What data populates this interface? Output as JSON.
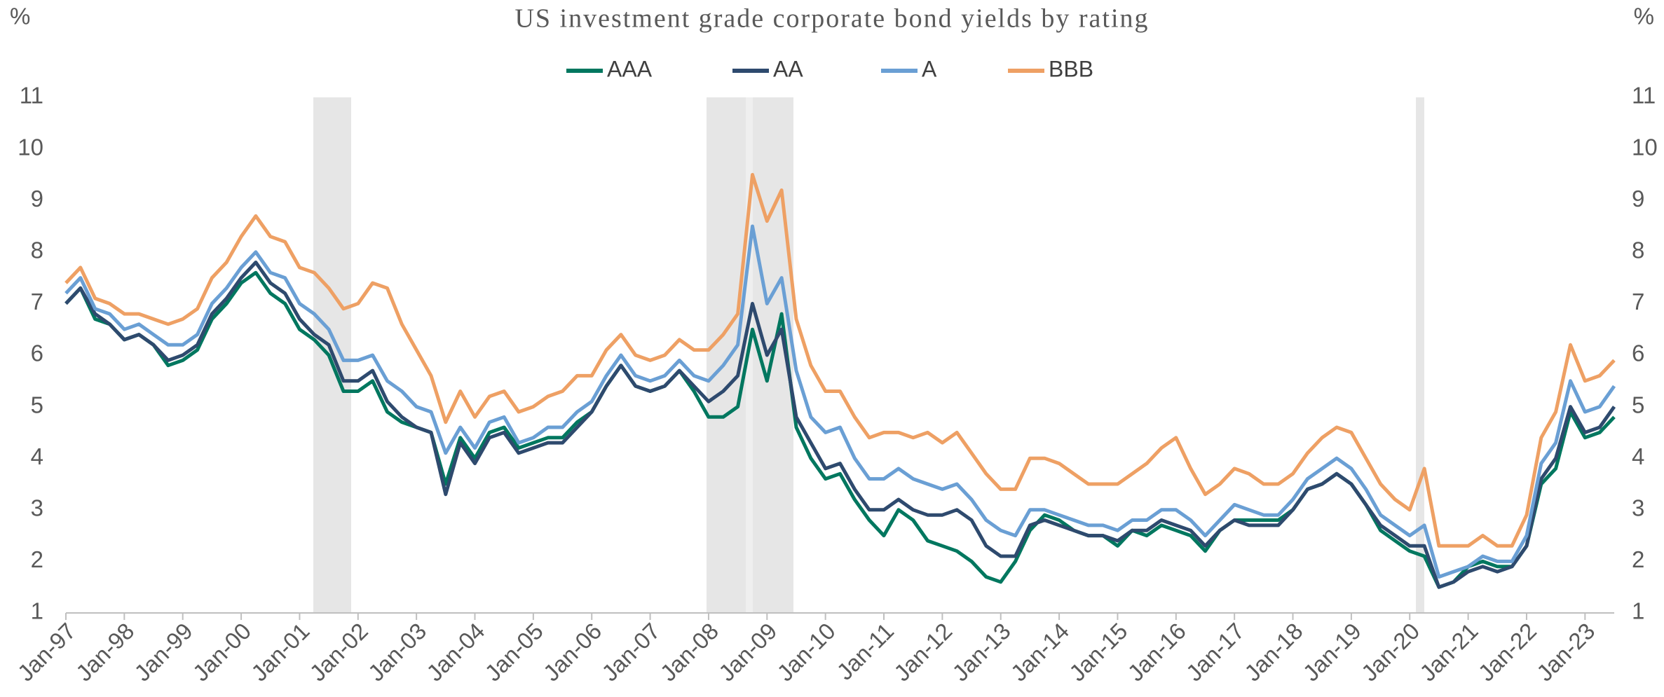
{
  "chart_data": {
    "type": "line",
    "title": "US investment grade corporate bond yields by rating",
    "y_label": "%",
    "y2_label": "%",
    "legend": "top",
    "categories": [
      "Jan-97",
      null,
      null,
      null,
      "Jan-98",
      null,
      null,
      null,
      "Jan-99",
      null,
      null,
      null,
      "Jan-00",
      null,
      null,
      null,
      "Jan-01",
      null,
      null,
      null,
      "Jan-02",
      null,
      null,
      null,
      "Jan-03",
      null,
      null,
      null,
      "Jan-04",
      null,
      null,
      null,
      "Jan-05",
      null,
      null,
      null,
      "Jan-06",
      null,
      null,
      null,
      "Jan-07",
      null,
      null,
      null,
      "Jan-08",
      null,
      null,
      null,
      "Jan-09",
      null,
      null,
      null,
      "Jan-10",
      null,
      null,
      null,
      "Jan-11",
      null,
      null,
      null,
      "Jan-12",
      null,
      null,
      null,
      "Jan-13",
      null,
      null,
      null,
      "Jan-14",
      null,
      null,
      null,
      "Jan-15",
      null,
      null,
      null,
      "Jan-16",
      null,
      null,
      null,
      "Jan-17",
      null,
      null,
      null,
      "Jan-18",
      null,
      null,
      null,
      "Jan-19",
      null,
      null,
      null,
      "Jan-20",
      null,
      null,
      null,
      "Jan-21",
      null,
      null,
      null,
      "Jan-22",
      null,
      null,
      null,
      "Jan-23",
      null,
      null
    ],
    "series": [
      {
        "name": "AAA",
        "color": "#00775f",
        "values": [
          7.0,
          7.3,
          6.7,
          6.6,
          6.3,
          6.4,
          6.2,
          5.8,
          5.9,
          6.1,
          6.7,
          7.0,
          7.4,
          7.6,
          7.2,
          7.0,
          6.5,
          6.3,
          6.0,
          5.3,
          5.3,
          5.5,
          4.9,
          4.7,
          4.6,
          4.5,
          3.5,
          4.4,
          4.0,
          4.5,
          4.6,
          4.2,
          4.3,
          4.4,
          4.4,
          4.7,
          4.9,
          5.4,
          5.8,
          5.4,
          5.3,
          5.4,
          5.7,
          5.3,
          4.8,
          4.8,
          5.0,
          6.5,
          5.5,
          6.8,
          4.6,
          4.0,
          3.6,
          3.7,
          3.2,
          2.8,
          2.5,
          3.0,
          2.8,
          2.4,
          2.3,
          2.2,
          2.0,
          1.7,
          1.6,
          2.0,
          2.6,
          2.9,
          2.8,
          2.6,
          2.5,
          2.5,
          2.3,
          2.6,
          2.5,
          2.7,
          2.6,
          2.5,
          2.2,
          2.6,
          2.8,
          2.8,
          2.8,
          2.8,
          3.0,
          3.4,
          3.5,
          3.7,
          3.5,
          3.1,
          2.6,
          2.4,
          2.2,
          2.1,
          1.5,
          1.6,
          1.9,
          2.0,
          1.9,
          1.9,
          2.3,
          3.5,
          3.8,
          4.9,
          4.4,
          4.5,
          4.8
        ]
      },
      {
        "name": "AA",
        "color": "#2e4a6e",
        "values": [
          7.0,
          7.3,
          6.8,
          6.6,
          6.3,
          6.4,
          6.2,
          5.9,
          6.0,
          6.2,
          6.8,
          7.1,
          7.5,
          7.8,
          7.4,
          7.2,
          6.7,
          6.4,
          6.2,
          5.5,
          5.5,
          5.7,
          5.1,
          4.8,
          4.6,
          4.5,
          3.3,
          4.3,
          3.9,
          4.4,
          4.5,
          4.1,
          4.2,
          4.3,
          4.3,
          4.6,
          4.9,
          5.4,
          5.8,
          5.4,
          5.3,
          5.4,
          5.7,
          5.4,
          5.1,
          5.3,
          5.6,
          7.0,
          6.0,
          6.5,
          4.8,
          4.3,
          3.8,
          3.9,
          3.4,
          3.0,
          3.0,
          3.2,
          3.0,
          2.9,
          2.9,
          3.0,
          2.8,
          2.3,
          2.1,
          2.1,
          2.7,
          2.8,
          2.7,
          2.6,
          2.5,
          2.5,
          2.4,
          2.6,
          2.6,
          2.8,
          2.7,
          2.6,
          2.3,
          2.6,
          2.8,
          2.7,
          2.7,
          2.7,
          3.0,
          3.4,
          3.5,
          3.7,
          3.5,
          3.1,
          2.7,
          2.5,
          2.3,
          2.3,
          1.5,
          1.6,
          1.8,
          1.9,
          1.8,
          1.9,
          2.3,
          3.6,
          4.0,
          5.0,
          4.5,
          4.6,
          5.0
        ]
      },
      {
        "name": "A",
        "color": "#6a9fd4",
        "values": [
          7.2,
          7.5,
          6.9,
          6.8,
          6.5,
          6.6,
          6.4,
          6.2,
          6.2,
          6.4,
          7.0,
          7.3,
          7.7,
          8.0,
          7.6,
          7.5,
          7.0,
          6.8,
          6.5,
          5.9,
          5.9,
          6.0,
          5.5,
          5.3,
          5.0,
          4.9,
          4.1,
          4.6,
          4.2,
          4.7,
          4.8,
          4.3,
          4.4,
          4.6,
          4.6,
          4.9,
          5.1,
          5.6,
          6.0,
          5.6,
          5.5,
          5.6,
          5.9,
          5.6,
          5.5,
          5.8,
          6.2,
          8.5,
          7.0,
          7.5,
          5.7,
          4.8,
          4.5,
          4.6,
          4.0,
          3.6,
          3.6,
          3.8,
          3.6,
          3.5,
          3.4,
          3.5,
          3.2,
          2.8,
          2.6,
          2.5,
          3.0,
          3.0,
          2.9,
          2.8,
          2.7,
          2.7,
          2.6,
          2.8,
          2.8,
          3.0,
          3.0,
          2.8,
          2.5,
          2.8,
          3.1,
          3.0,
          2.9,
          2.9,
          3.2,
          3.6,
          3.8,
          4.0,
          3.8,
          3.4,
          2.9,
          2.7,
          2.5,
          2.7,
          1.7,
          1.8,
          1.9,
          2.1,
          2.0,
          2.0,
          2.5,
          3.9,
          4.3,
          5.5,
          4.9,
          5.0,
          5.4
        ]
      },
      {
        "name": "BBB",
        "color": "#eea064",
        "values": [
          7.4,
          7.7,
          7.1,
          7.0,
          6.8,
          6.8,
          6.7,
          6.6,
          6.7,
          6.9,
          7.5,
          7.8,
          8.3,
          8.7,
          8.3,
          8.2,
          7.7,
          7.6,
          7.3,
          6.9,
          7.0,
          7.4,
          7.3,
          6.6,
          6.1,
          5.6,
          4.7,
          5.3,
          4.8,
          5.2,
          5.3,
          4.9,
          5.0,
          5.2,
          5.3,
          5.6,
          5.6,
          6.1,
          6.4,
          6.0,
          5.9,
          6.0,
          6.3,
          6.1,
          6.1,
          6.4,
          6.8,
          9.5,
          8.6,
          9.2,
          6.7,
          5.8,
          5.3,
          5.3,
          4.8,
          4.4,
          4.5,
          4.5,
          4.4,
          4.5,
          4.3,
          4.5,
          4.1,
          3.7,
          3.4,
          3.4,
          4.0,
          4.0,
          3.9,
          3.7,
          3.5,
          3.5,
          3.5,
          3.7,
          3.9,
          4.2,
          4.4,
          3.8,
          3.3,
          3.5,
          3.8,
          3.7,
          3.5,
          3.5,
          3.7,
          4.1,
          4.4,
          4.6,
          4.5,
          4.0,
          3.5,
          3.2,
          3.0,
          3.8,
          2.3,
          2.3,
          2.3,
          2.5,
          2.3,
          2.3,
          2.9,
          4.4,
          4.9,
          6.2,
          5.5,
          5.6,
          5.9
        ]
      }
    ],
    "ylim": [
      1,
      11
    ],
    "yticks": [
      1,
      2,
      3,
      4,
      5,
      6,
      7,
      8,
      9,
      10,
      11
    ],
    "y2lim": [
      1,
      11
    ],
    "y2ticks": [
      1,
      2,
      3,
      4,
      5,
      6,
      7,
      8,
      9,
      10,
      11
    ]
  }
}
